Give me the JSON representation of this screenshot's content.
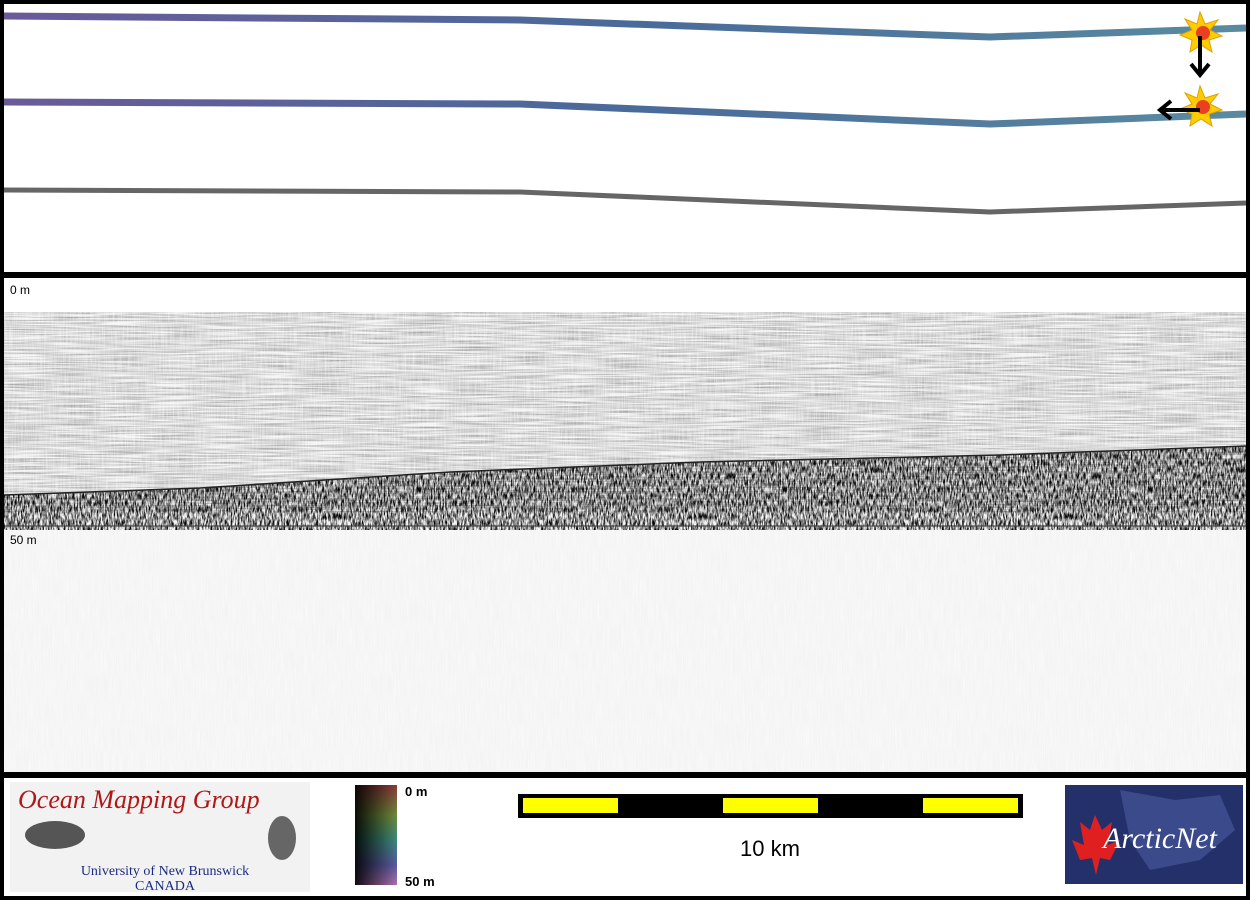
{
  "profile": {
    "depth_top_label": "0 m",
    "depth_mid_label": "50 m"
  },
  "footer": {
    "logo_title": "Ocean Mapping Group",
    "logo_line1": "University of New Brunswick",
    "logo_line2": "CANADA",
    "colorbar_top": "0 m",
    "colorbar_bottom": "50 m",
    "scale_label": "10 km",
    "partner_logo": "ArcticNet"
  }
}
